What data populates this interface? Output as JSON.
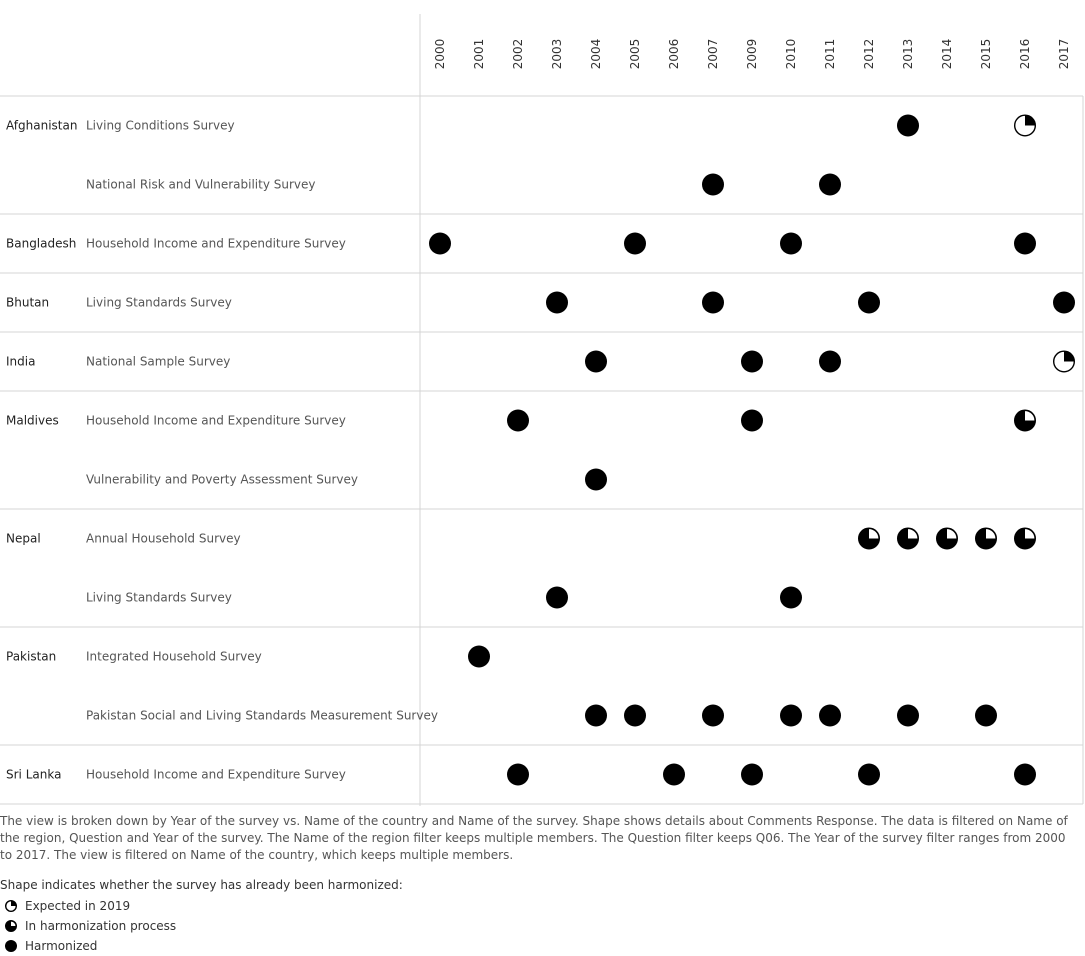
{
  "chart_data": {
    "type": "scatter",
    "title": "",
    "years": [
      "2000",
      "2001",
      "2002",
      "2003",
      "2004",
      "2005",
      "2006",
      "2007",
      "2009",
      "2010",
      "2011",
      "2012",
      "2013",
      "2014",
      "2015",
      "2016",
      "2017"
    ],
    "status_colors": {
      "mark": "#000000",
      "background": "#ffffff"
    },
    "groups": [
      {
        "country": "Afghanistan",
        "surveys": [
          {
            "name": "Living Conditions Survey",
            "points": [
              {
                "year": "2013",
                "status": "Harmonized"
              },
              {
                "year": "2016",
                "status": "Expected in 2019"
              }
            ]
          },
          {
            "name": "National Risk and Vulnerability Survey",
            "points": [
              {
                "year": "2007",
                "status": "Harmonized"
              },
              {
                "year": "2011",
                "status": "Harmonized"
              }
            ]
          }
        ]
      },
      {
        "country": "Bangladesh",
        "surveys": [
          {
            "name": "Household Income and Expenditure Survey",
            "points": [
              {
                "year": "2000",
                "status": "Harmonized"
              },
              {
                "year": "2005",
                "status": "Harmonized"
              },
              {
                "year": "2010",
                "status": "Harmonized"
              },
              {
                "year": "2016",
                "status": "Harmonized"
              }
            ]
          }
        ]
      },
      {
        "country": "Bhutan",
        "surveys": [
          {
            "name": "Living Standards Survey",
            "points": [
              {
                "year": "2003",
                "status": "Harmonized"
              },
              {
                "year": "2007",
                "status": "Harmonized"
              },
              {
                "year": "2012",
                "status": "Harmonized"
              },
              {
                "year": "2017",
                "status": "Harmonized"
              }
            ]
          }
        ]
      },
      {
        "country": "India",
        "surveys": [
          {
            "name": "National Sample Survey",
            "points": [
              {
                "year": "2004",
                "status": "Harmonized"
              },
              {
                "year": "2009",
                "status": "Harmonized"
              },
              {
                "year": "2011",
                "status": "Harmonized"
              },
              {
                "year": "2017",
                "status": "Expected in 2019"
              }
            ]
          }
        ]
      },
      {
        "country": "Maldives",
        "surveys": [
          {
            "name": "Household Income and Expenditure Survey",
            "points": [
              {
                "year": "2002",
                "status": "Harmonized"
              },
              {
                "year": "2009",
                "status": "Harmonized"
              },
              {
                "year": "2016",
                "status": "In harmonization process"
              }
            ]
          },
          {
            "name": "Vulnerability and Poverty Assessment Survey",
            "points": [
              {
                "year": "2004",
                "status": "Harmonized"
              }
            ]
          }
        ]
      },
      {
        "country": "Nepal",
        "surveys": [
          {
            "name": "Annual Household Survey",
            "points": [
              {
                "year": "2012",
                "status": "In harmonization process"
              },
              {
                "year": "2013",
                "status": "In harmonization process"
              },
              {
                "year": "2014",
                "status": "In harmonization process"
              },
              {
                "year": "2015",
                "status": "In harmonization process"
              },
              {
                "year": "2016",
                "status": "In harmonization process"
              }
            ]
          },
          {
            "name": "Living Standards Survey",
            "points": [
              {
                "year": "2003",
                "status": "Harmonized"
              },
              {
                "year": "2010",
                "status": "Harmonized"
              }
            ]
          }
        ]
      },
      {
        "country": "Pakistan",
        "surveys": [
          {
            "name": "Integrated Household Survey",
            "points": [
              {
                "year": "2001",
                "status": "Harmonized"
              }
            ]
          },
          {
            "name": "Pakistan Social and Living Standards Measurement Survey",
            "points": [
              {
                "year": "2004",
                "status": "Harmonized"
              },
              {
                "year": "2005",
                "status": "Harmonized"
              },
              {
                "year": "2007",
                "status": "Harmonized"
              },
              {
                "year": "2010",
                "status": "Harmonized"
              },
              {
                "year": "2011",
                "status": "Harmonized"
              },
              {
                "year": "2013",
                "status": "Harmonized"
              },
              {
                "year": "2015",
                "status": "Harmonized"
              }
            ]
          }
        ]
      },
      {
        "country": "Sri Lanka",
        "surveys": [
          {
            "name": "Household Income and Expenditure Survey",
            "points": [
              {
                "year": "2002",
                "status": "Harmonized"
              },
              {
                "year": "2006",
                "status": "Harmonized"
              },
              {
                "year": "2009",
                "status": "Harmonized"
              },
              {
                "year": "2012",
                "status": "Harmonized"
              },
              {
                "year": "2016",
                "status": "Harmonized"
              }
            ]
          }
        ]
      }
    ]
  },
  "caption": "The view is broken down by Year of the survey vs. Name of the country and Name of the survey.  Shape shows details about Comments Response. The data is filtered on Name of the region, Question and Year of the survey. The Name of the region filter keeps multiple members. The Question filter keeps Q06. The Year of the survey filter ranges from 2000 to 2017. The view is filtered on Name of the country, which keeps multiple members.",
  "legend": {
    "title": "Shape indicates whether the survey has already been harmonized:",
    "items": [
      {
        "label": "Expected in 2019",
        "status": "Expected in 2019"
      },
      {
        "label": "In harmonization process",
        "status": "In harmonization process"
      },
      {
        "label": "Harmonized",
        "status": "Harmonized"
      }
    ]
  }
}
